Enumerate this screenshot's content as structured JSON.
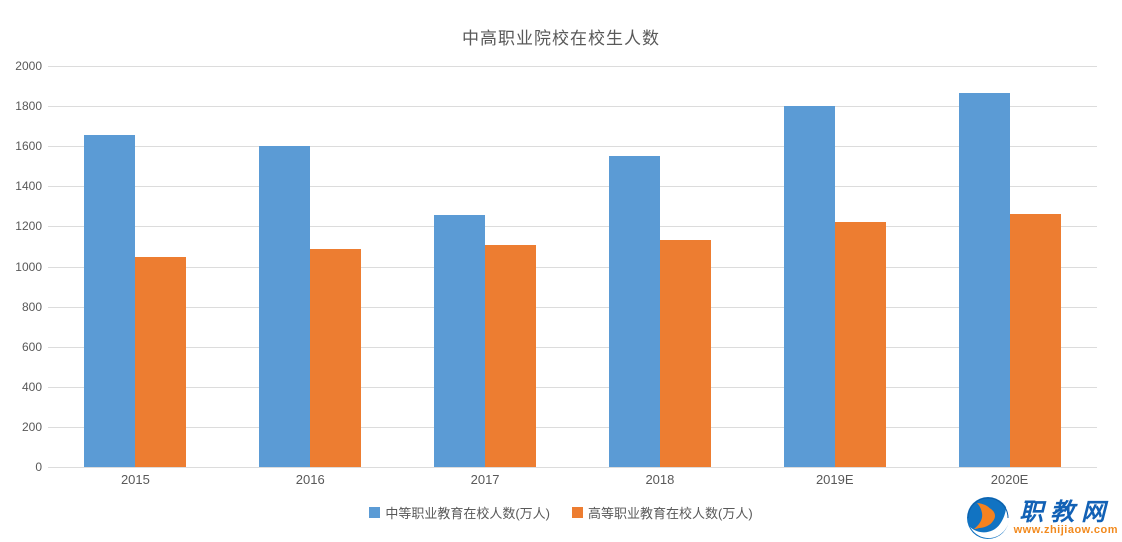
{
  "chart_data": {
    "type": "bar",
    "title": "中高职业院校在校生人数",
    "categories": [
      "2015",
      "2016",
      "2017",
      "2018",
      "2019E",
      "2020E"
    ],
    "series": [
      {
        "name": "中等职业教育在校人数(万人)",
        "color": "#5b9bd5",
        "values": [
          1655,
          1600,
          1255,
          1550,
          1800,
          1865
        ]
      },
      {
        "name": "高等职业教育在校人数(万人)",
        "color": "#ed7d31",
        "values": [
          1045,
          1085,
          1105,
          1130,
          1220,
          1260
        ]
      }
    ],
    "xlabel": "",
    "ylabel": "",
    "ylim": [
      0,
      2000
    ],
    "ytick_step": 200,
    "grid": "horizontal",
    "legend_position": "bottom"
  },
  "colors": {
    "grid_line": "#dcdcdc",
    "axis_text": "#595959",
    "title_text": "#595959",
    "background": "#ffffff"
  },
  "watermark": {
    "site_name": "职教网",
    "site_url": "www.zhijiaow.com",
    "name_color": "#1261b5",
    "url_color": "#f28a1e",
    "icon": "zhijiaow-globe-logo"
  }
}
